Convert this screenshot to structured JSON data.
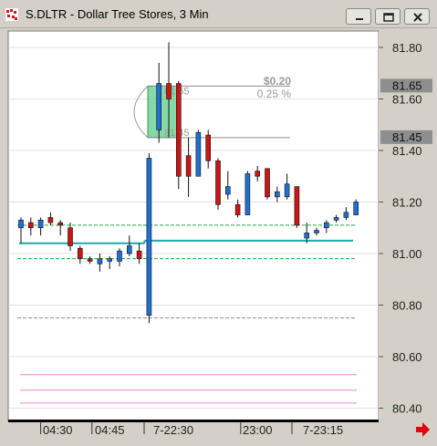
{
  "window": {
    "title": "S.DLTR - Dollar Tree Stores, 3 Min",
    "icon": "candlestick-app-icon",
    "buttons": [
      "minimize-icon",
      "restore-icon",
      "close-icon"
    ]
  },
  "chart_data": {
    "type": "candlestick",
    "symbol": "S.DLTR",
    "title": "Dollar Tree Stores, 3 Min",
    "ylim": [
      80.34,
      81.88
    ],
    "yticks": [
      80.4,
      80.6,
      80.8,
      81.0,
      81.2,
      81.4,
      81.6,
      81.8
    ],
    "ytick_labels": [
      "80.40",
      "80.60",
      "80.80",
      "81.00",
      "81.20",
      "81.40",
      "81.60",
      "81.80"
    ],
    "xtick_labels": [
      "04:30",
      "04:45",
      "7-22:30",
      "23:00",
      "7-23:15"
    ],
    "price_flags": [
      {
        "label": "81.65",
        "value": 81.65
      },
      {
        "label": "81.45",
        "value": 81.45
      }
    ],
    "measure": {
      "change": "$0.20",
      "percent": "0.25 %",
      "from": 81.45,
      "to": 81.65,
      "from_label": "81.45",
      "to_label": "81.65"
    },
    "candles": [
      {
        "o": 81.1,
        "h": 81.14,
        "l": 81.04,
        "c": 81.13
      },
      {
        "o": 81.12,
        "h": 81.14,
        "l": 81.07,
        "c": 81.1
      },
      {
        "o": 81.1,
        "h": 81.14,
        "l": 81.07,
        "c": 81.13
      },
      {
        "o": 81.14,
        "h": 81.16,
        "l": 81.11,
        "c": 81.12
      },
      {
        "o": 81.12,
        "h": 81.13,
        "l": 81.07,
        "c": 81.11
      },
      {
        "o": 81.1,
        "h": 81.12,
        "l": 81.01,
        "c": 81.03
      },
      {
        "o": 81.02,
        "h": 81.03,
        "l": 80.96,
        "c": 80.98
      },
      {
        "o": 80.98,
        "h": 80.99,
        "l": 80.96,
        "c": 80.97
      },
      {
        "o": 80.96,
        "h": 81.0,
        "l": 80.93,
        "c": 80.98
      },
      {
        "o": 80.97,
        "h": 80.99,
        "l": 80.94,
        "c": 80.98
      },
      {
        "o": 80.97,
        "h": 81.02,
        "l": 80.95,
        "c": 81.01
      },
      {
        "o": 81.0,
        "h": 81.07,
        "l": 80.99,
        "c": 81.03
      },
      {
        "o": 81.01,
        "h": 81.04,
        "l": 80.96,
        "c": 80.98
      },
      {
        "o": 80.76,
        "h": 81.39,
        "l": 80.73,
        "c": 81.37
      },
      {
        "o": 81.48,
        "h": 81.74,
        "l": 81.43,
        "c": 81.66
      },
      {
        "o": 81.66,
        "h": 81.82,
        "l": 81.45,
        "c": 81.6
      },
      {
        "o": 81.66,
        "h": 81.67,
        "l": 81.25,
        "c": 81.3
      },
      {
        "o": 81.38,
        "h": 81.45,
        "l": 81.22,
        "c": 81.3
      },
      {
        "o": 81.3,
        "h": 81.48,
        "l": 81.3,
        "c": 81.47
      },
      {
        "o": 81.46,
        "h": 81.48,
        "l": 81.33,
        "c": 81.36
      },
      {
        "o": 81.36,
        "h": 81.37,
        "l": 81.17,
        "c": 81.19
      },
      {
        "o": 81.23,
        "h": 81.32,
        "l": 81.21,
        "c": 81.26
      },
      {
        "o": 81.19,
        "h": 81.21,
        "l": 81.14,
        "c": 81.15
      },
      {
        "o": 81.15,
        "h": 81.32,
        "l": 81.15,
        "c": 81.31
      },
      {
        "o": 81.32,
        "h": 81.34,
        "l": 81.28,
        "c": 81.3
      },
      {
        "o": 81.33,
        "h": 81.33,
        "l": 81.21,
        "c": 81.22
      },
      {
        "o": 81.22,
        "h": 81.26,
        "l": 81.2,
        "c": 81.24
      },
      {
        "o": 81.22,
        "h": 81.31,
        "l": 81.21,
        "c": 81.27
      },
      {
        "o": 81.26,
        "h": 81.26,
        "l": 81.1,
        "c": 81.11
      },
      {
        "o": 81.06,
        "h": 81.12,
        "l": 81.04,
        "c": 81.08
      },
      {
        "o": 81.08,
        "h": 81.1,
        "l": 81.07,
        "c": 81.09
      },
      {
        "o": 81.1,
        "h": 81.13,
        "l": 81.08,
        "c": 81.12
      },
      {
        "o": 81.13,
        "h": 81.15,
        "l": 81.12,
        "c": 81.14
      },
      {
        "o": 81.14,
        "h": 81.18,
        "l": 81.13,
        "c": 81.16
      },
      {
        "o": 81.15,
        "h": 81.21,
        "l": 81.15,
        "c": 81.2
      }
    ],
    "lines": [
      {
        "name": "upper-band",
        "value": 81.11,
        "style": "dashed",
        "color": "#22a84a"
      },
      {
        "name": "lower-band",
        "value": 80.98,
        "style": "dashed",
        "color": "#22a84a"
      },
      {
        "name": "vwap-early",
        "value": 81.04,
        "color": "#1aa8b0",
        "to_candle": 13
      },
      {
        "name": "vwap-late",
        "value": 81.05,
        "color": "#1aa8b0",
        "from_candle": 13
      },
      {
        "name": "support",
        "value": 80.75,
        "style": "dashed",
        "color": "#8a8a8a"
      },
      {
        "name": "pink-1",
        "value": 80.53,
        "color": "#e98ad0"
      },
      {
        "name": "pink-2",
        "value": 80.47,
        "color": "#e98ad0"
      },
      {
        "name": "pink-3",
        "value": 80.42,
        "color": "#e98ad0"
      }
    ],
    "colors": {
      "up": "#1f6fd1",
      "down": "#cc1414",
      "grid": "#e2e2e2",
      "flag": "#8e8e8e",
      "measure_box": "#5ecb8a",
      "arrow": "#e3000f"
    },
    "grid": true
  }
}
